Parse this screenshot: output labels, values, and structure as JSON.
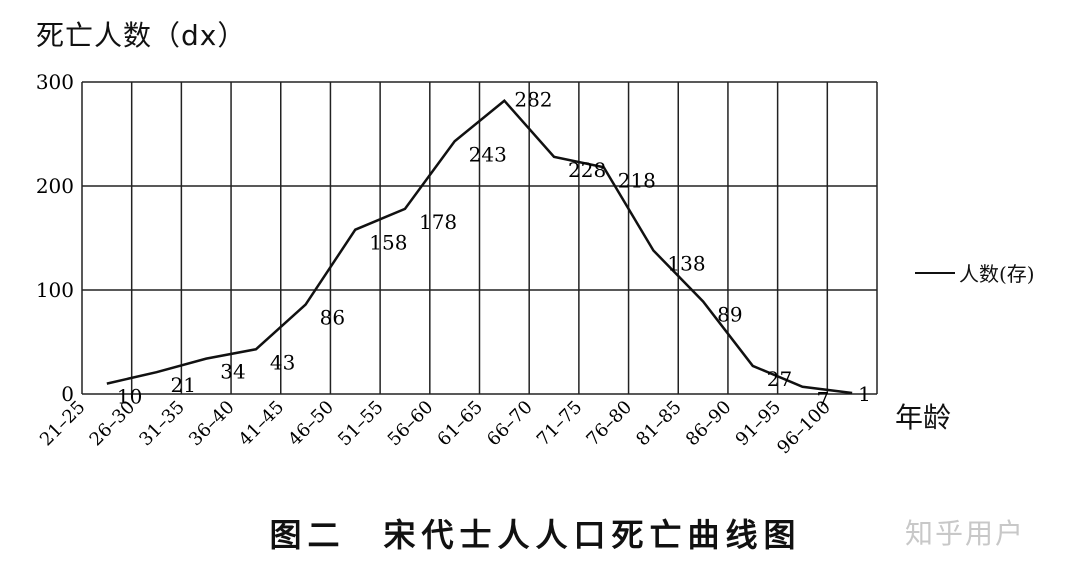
{
  "chart_data": {
    "type": "line",
    "title": "图二　宋代士人人口死亡曲线图",
    "ylabel": "死亡人数（dx）",
    "xlabel": "年龄",
    "categories": [
      "21–25",
      "26–30",
      "31–35",
      "36–40",
      "41–45",
      "46–50",
      "51–55",
      "56–60",
      "61–65",
      "66–70",
      "71–75",
      "76–80",
      "81–85",
      "86–90",
      "91–95",
      "96–100"
    ],
    "series": [
      {
        "name": "人数(存)",
        "values": [
          10,
          21,
          34,
          43,
          86,
          158,
          178,
          243,
          282,
          228,
          218,
          138,
          89,
          27,
          7,
          1
        ]
      }
    ],
    "yticks": [
      0,
      100,
      200,
      300
    ],
    "ylim": [
      0,
      300
    ],
    "grid": true,
    "legend_position": "right"
  },
  "watermark": "知乎用户"
}
